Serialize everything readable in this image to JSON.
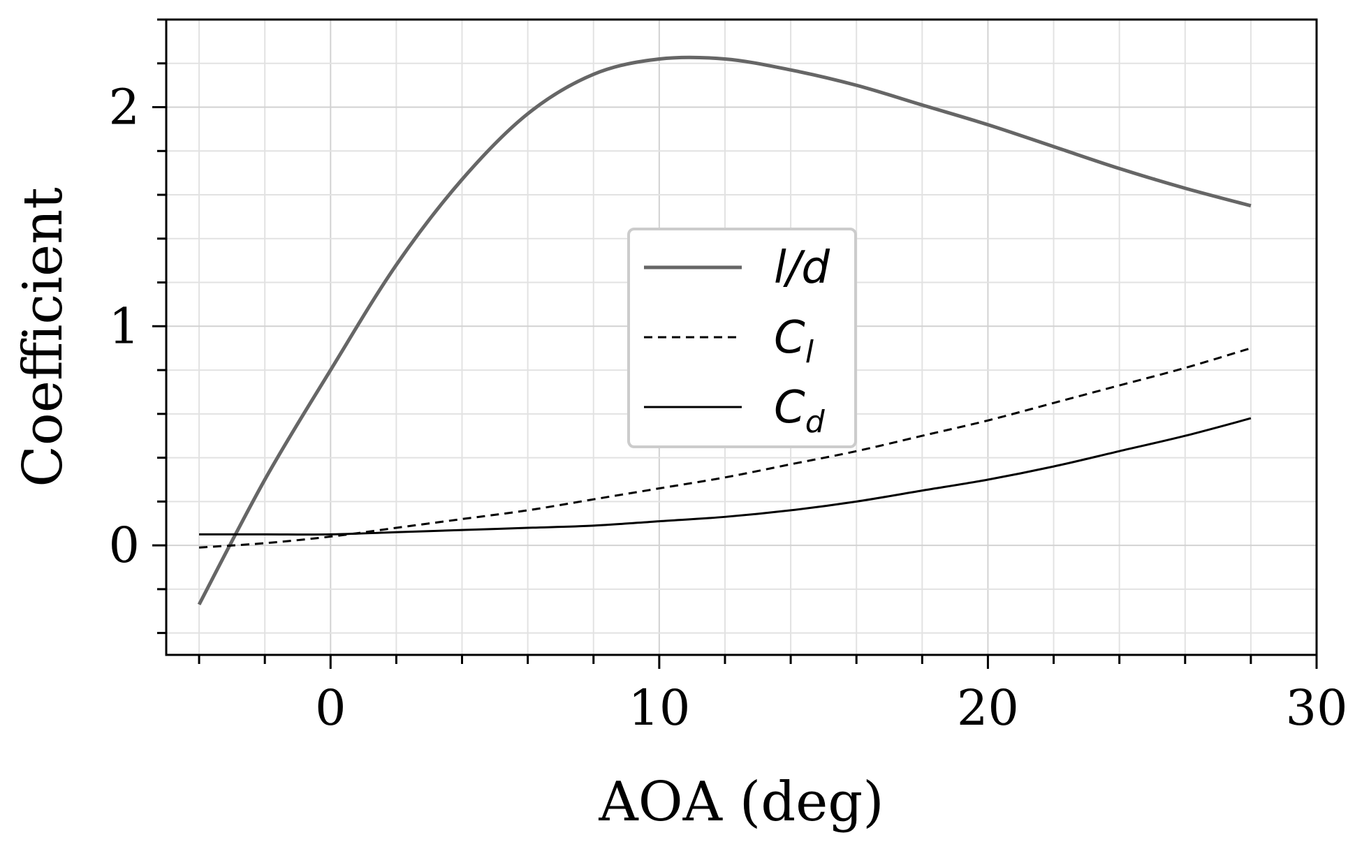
{
  "chart_data": {
    "type": "line",
    "title": "",
    "xlabel": "AOA (deg)",
    "ylabel": "Coefficient",
    "xlim": [
      -5,
      30
    ],
    "ylim": [
      -0.5,
      2.4
    ],
    "x_ticks": [
      0,
      10,
      20,
      30
    ],
    "x_tick_labels": [
      "0",
      "10",
      "20",
      "30"
    ],
    "y_ticks": [
      0,
      1,
      2
    ],
    "y_tick_labels": [
      "0",
      "1",
      "2"
    ],
    "x_minor_step": 2,
    "y_minor_step": 0.2,
    "grid": true,
    "legend_position": "center",
    "series": [
      {
        "name": "l/d",
        "legend_main": "l/d",
        "legend_sub": "",
        "style": "solid-thick",
        "color": "#666666",
        "x": [
          -4,
          -2,
          0,
          2,
          4,
          6,
          8,
          10,
          12,
          14,
          16,
          18,
          20,
          22,
          24,
          26,
          28
        ],
        "y": [
          -0.27,
          0.3,
          0.8,
          1.28,
          1.67,
          1.97,
          2.15,
          2.22,
          2.22,
          2.17,
          2.1,
          2.01,
          1.92,
          1.82,
          1.72,
          1.63,
          1.55
        ]
      },
      {
        "name": "Cl",
        "legend_main": "C",
        "legend_sub": "l",
        "style": "dashed",
        "color": "#000000",
        "x": [
          -4,
          -2,
          0,
          2,
          4,
          6,
          8,
          10,
          12,
          14,
          16,
          18,
          20,
          22,
          24,
          26,
          28
        ],
        "y": [
          -0.01,
          0.01,
          0.04,
          0.08,
          0.12,
          0.16,
          0.21,
          0.26,
          0.31,
          0.37,
          0.43,
          0.5,
          0.57,
          0.65,
          0.73,
          0.81,
          0.9
        ]
      },
      {
        "name": "Cd",
        "legend_main": "C",
        "legend_sub": "d",
        "style": "solid-thin",
        "color": "#000000",
        "x": [
          -4,
          -2,
          0,
          2,
          4,
          6,
          8,
          10,
          12,
          14,
          16,
          18,
          20,
          22,
          24,
          26,
          28
        ],
        "y": [
          0.05,
          0.05,
          0.05,
          0.06,
          0.07,
          0.08,
          0.09,
          0.11,
          0.13,
          0.16,
          0.2,
          0.25,
          0.3,
          0.36,
          0.43,
          0.5,
          0.58
        ]
      }
    ]
  }
}
